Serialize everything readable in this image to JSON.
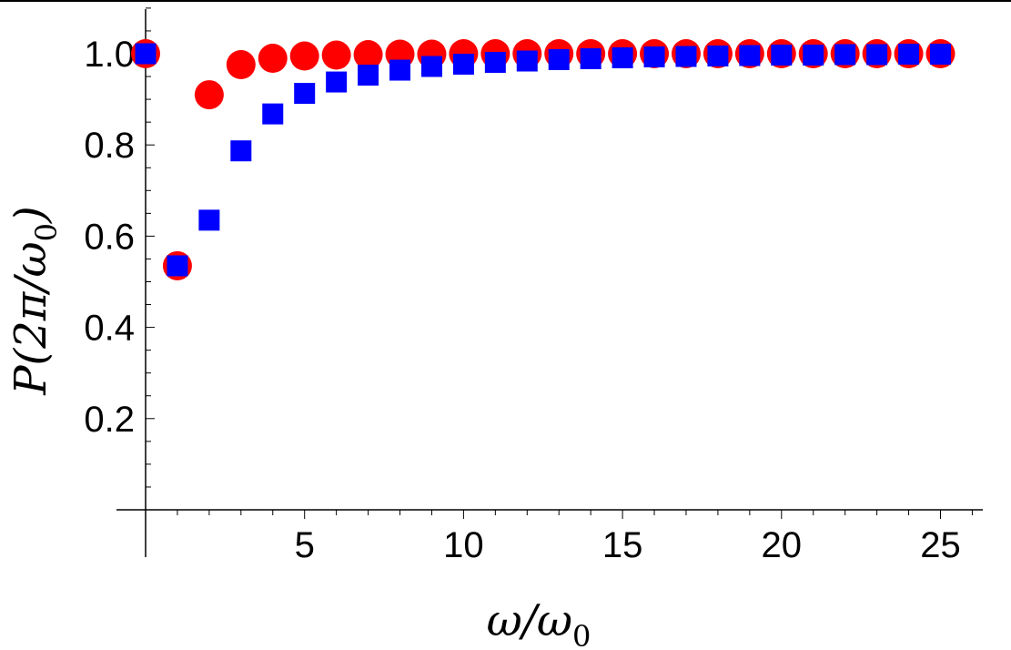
{
  "chart_data": {
    "type": "scatter",
    "xlabel": "ω/ω",
    "xlabel_subscript": "0",
    "ylabel_prefix": "P(2π/ω",
    "ylabel_subscript": "0",
    "ylabel_suffix": ")",
    "xlim": [
      0,
      26
    ],
    "ylim": [
      0,
      1.1
    ],
    "x_ticks": [
      5,
      10,
      15,
      20,
      25
    ],
    "y_ticks": [
      0.2,
      0.4,
      0.6,
      0.8,
      1.0
    ],
    "x_tick_labels": [
      "5",
      "10",
      "15",
      "20",
      "25"
    ],
    "y_tick_labels": [
      "0.2",
      "0.4",
      "0.6",
      "0.8",
      "1.0"
    ],
    "series": [
      {
        "name": "red-circles",
        "marker": "circle",
        "color": "#ff0000",
        "x": [
          0,
          1,
          2,
          3,
          4,
          5,
          6,
          7,
          8,
          9,
          10,
          11,
          12,
          13,
          14,
          15,
          16,
          17,
          18,
          19,
          20,
          21,
          22,
          23,
          24,
          25
        ],
        "y": [
          1.0,
          0.535,
          0.91,
          0.976,
          0.99,
          0.995,
          0.997,
          0.998,
          0.999,
          0.999,
          1.0,
          1.0,
          1.0,
          1.0,
          1.0,
          1.0,
          1.0,
          1.0,
          1.0,
          1.0,
          1.0,
          1.0,
          1.0,
          1.0,
          1.0,
          1.0
        ]
      },
      {
        "name": "blue-squares",
        "marker": "square",
        "color": "#0000ff",
        "x": [
          0,
          1,
          2,
          3,
          4,
          5,
          6,
          7,
          8,
          9,
          10,
          11,
          12,
          13,
          14,
          15,
          16,
          17,
          18,
          19,
          20,
          21,
          22,
          23,
          24,
          25
        ],
        "y": [
          1.0,
          0.535,
          0.635,
          0.787,
          0.868,
          0.913,
          0.938,
          0.953,
          0.964,
          0.972,
          0.977,
          0.981,
          0.984,
          0.987,
          0.989,
          0.991,
          0.993,
          0.994,
          0.995,
          0.996,
          0.997,
          0.997,
          0.998,
          0.998,
          0.999,
          0.999
        ]
      }
    ]
  }
}
